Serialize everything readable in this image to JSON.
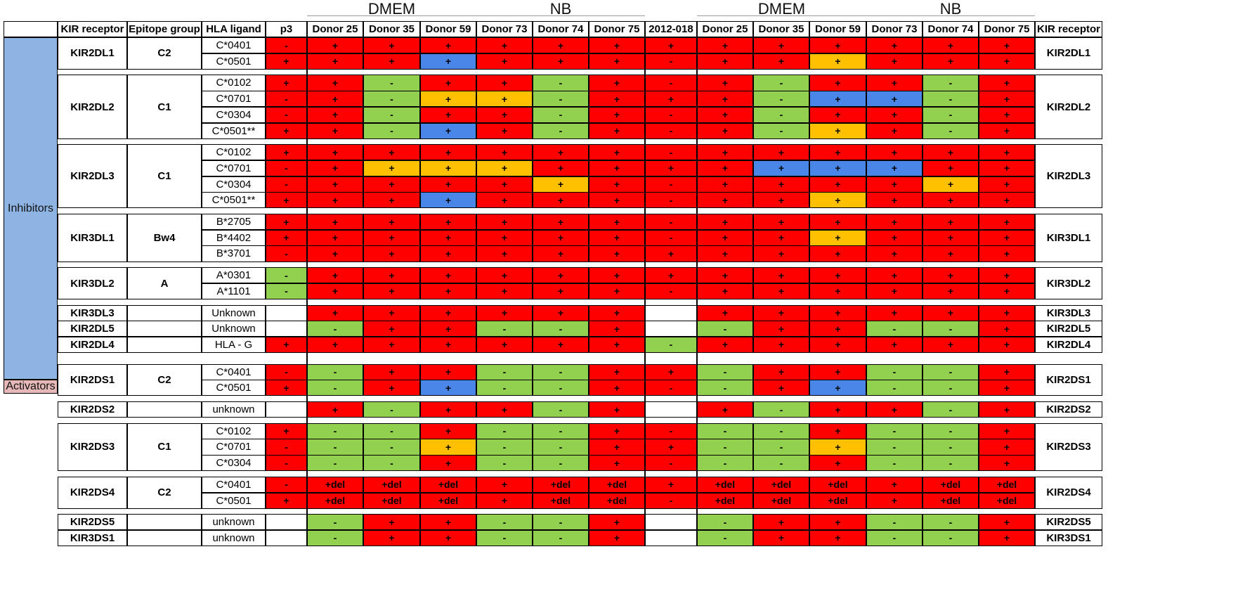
{
  "colors": {
    "plus": "#ff0000",
    "minus": "#92d050",
    "blue": "#4a86e8",
    "orange": "#ffc000",
    "empty": "#ffffff",
    "inhibitors_bg": "#8eb4e3",
    "activators_bg": "#e6b9b8"
  },
  "top_headers": [
    {
      "label": "DMEM",
      "start_col": 1,
      "end_col": 3
    },
    {
      "label": "NB",
      "start_col": 4,
      "end_col": 6
    },
    {
      "label": "DMEM",
      "start_col": 8,
      "end_col": 10
    },
    {
      "label": "NB",
      "start_col": 11,
      "end_col": 13
    }
  ],
  "headers": {
    "receptor": "KIR receptor",
    "epitope": "Epitope group",
    "ligand": "HLA ligand",
    "columns": [
      "p3",
      "Donor 25",
      "Donor 35",
      "Donor 59",
      "Donor 73",
      "Donor 74",
      "Donor 75",
      "2012-018",
      "Donor 25",
      "Donor 35",
      "Donor 59",
      "Donor 73",
      "Donor 74",
      "Donor 75"
    ],
    "receptor_right": "KIR receptor"
  },
  "groups": [
    {
      "label": "Inhibitors",
      "first_row": 0,
      "last_row": 18
    },
    {
      "label": "Activators",
      "first_row": 19,
      "last_row": 30
    }
  ],
  "blocks": [
    {
      "receptor": "KIR2DL1",
      "epitope": "C2",
      "rows": [
        {
          "ligand": "C*0401",
          "cells": [
            "-",
            "+",
            "+",
            "+",
            "+",
            "+",
            "+",
            "+",
            "+",
            "+",
            "+",
            "+",
            "+",
            "+"
          ],
          "colors": [
            "R",
            "R",
            "R",
            "R",
            "R",
            "R",
            "R",
            "R",
            "R",
            "R",
            "R",
            "R",
            "R",
            "R"
          ]
        },
        {
          "ligand": "C*0501",
          "cells": [
            "+",
            "+",
            "+",
            "+",
            "+",
            "+",
            "+",
            "-",
            "+",
            "+",
            "+",
            "+",
            "+",
            "+"
          ],
          "colors": [
            "R",
            "R",
            "R",
            "B",
            "R",
            "R",
            "R",
            "R",
            "R",
            "R",
            "O",
            "R",
            "R",
            "R"
          ]
        }
      ]
    },
    {
      "receptor": "KIR2DL2",
      "epitope": "C1",
      "rows": [
        {
          "ligand": "C*0102",
          "cells": [
            "+",
            "+",
            "-",
            "+",
            "+",
            "-",
            "+",
            "-",
            "+",
            "-",
            "+",
            "+",
            "-",
            "+"
          ],
          "colors": [
            "R",
            "R",
            "G",
            "R",
            "R",
            "G",
            "R",
            "R",
            "R",
            "G",
            "R",
            "R",
            "G",
            "R"
          ]
        },
        {
          "ligand": "C*0701",
          "cells": [
            "-",
            "+",
            "-",
            "+",
            "+",
            "-",
            "+",
            "+",
            "+",
            "-",
            "+",
            "+",
            "-",
            "+"
          ],
          "colors": [
            "R",
            "R",
            "G",
            "O",
            "O",
            "G",
            "R",
            "R",
            "R",
            "G",
            "B",
            "B",
            "G",
            "R"
          ]
        },
        {
          "ligand": "C*0304",
          "cells": [
            "-",
            "+",
            "-",
            "+",
            "+",
            "-",
            "+",
            "-",
            "+",
            "-",
            "+",
            "+",
            "-",
            "+"
          ],
          "colors": [
            "R",
            "R",
            "G",
            "R",
            "R",
            "G",
            "R",
            "R",
            "R",
            "G",
            "R",
            "R",
            "G",
            "R"
          ]
        },
        {
          "ligand": "C*0501**",
          "cells": [
            "+",
            "+",
            "-",
            "+",
            "+",
            "-",
            "+",
            "-",
            "+",
            "-",
            "+",
            "+",
            "-",
            "+"
          ],
          "colors": [
            "R",
            "R",
            "G",
            "B",
            "R",
            "G",
            "R",
            "R",
            "R",
            "G",
            "O",
            "R",
            "G",
            "R"
          ]
        }
      ]
    },
    {
      "receptor": "KIR2DL3",
      "epitope": "C1",
      "rows": [
        {
          "ligand": "C*0102",
          "cells": [
            "+",
            "+",
            "+",
            "+",
            "+",
            "+",
            "+",
            "-",
            "+",
            "+",
            "+",
            "+",
            "+",
            "+"
          ],
          "colors": [
            "R",
            "R",
            "R",
            "R",
            "R",
            "R",
            "R",
            "R",
            "R",
            "R",
            "R",
            "R",
            "R",
            "R"
          ]
        },
        {
          "ligand": "C*0701",
          "cells": [
            "-",
            "+",
            "+",
            "+",
            "+",
            "+",
            "+",
            "+",
            "+",
            "+",
            "+",
            "+",
            "+",
            "+"
          ],
          "colors": [
            "R",
            "R",
            "O",
            "O",
            "O",
            "R",
            "R",
            "R",
            "R",
            "B",
            "B",
            "B",
            "R",
            "R"
          ]
        },
        {
          "ligand": "C*0304",
          "cells": [
            "-",
            "+",
            "+",
            "+",
            "+",
            "+",
            "+",
            "-",
            "+",
            "+",
            "+",
            "+",
            "+",
            "+"
          ],
          "colors": [
            "R",
            "R",
            "R",
            "R",
            "R",
            "O",
            "R",
            "R",
            "R",
            "R",
            "R",
            "R",
            "O",
            "R"
          ]
        },
        {
          "ligand": "C*0501**",
          "cells": [
            "+",
            "+",
            "+",
            "+",
            "+",
            "+",
            "+",
            "-",
            "+",
            "+",
            "+",
            "+",
            "+",
            "+"
          ],
          "colors": [
            "R",
            "R",
            "R",
            "B",
            "R",
            "R",
            "R",
            "R",
            "R",
            "R",
            "O",
            "R",
            "R",
            "R"
          ]
        }
      ]
    },
    {
      "receptor": "KIR3DL1",
      "epitope": "Bw4",
      "rows": [
        {
          "ligand": "B*2705",
          "cells": [
            "+",
            "+",
            "+",
            "+",
            "+",
            "+",
            "+",
            "-",
            "+",
            "+",
            "+",
            "+",
            "+",
            "+"
          ],
          "colors": [
            "R",
            "R",
            "R",
            "R",
            "R",
            "R",
            "R",
            "R",
            "R",
            "R",
            "R",
            "R",
            "R",
            "R"
          ]
        },
        {
          "ligand": "B*4402",
          "cells": [
            "+",
            "+",
            "+",
            "+",
            "+",
            "+",
            "+",
            "-",
            "+",
            "+",
            "+",
            "+",
            "+",
            "+"
          ],
          "colors": [
            "R",
            "R",
            "R",
            "R",
            "R",
            "R",
            "R",
            "R",
            "R",
            "R",
            "O",
            "R",
            "R",
            "R"
          ]
        },
        {
          "ligand": "B*3701",
          "cells": [
            "-",
            "+",
            "+",
            "+",
            "+",
            "+",
            "+",
            "+",
            "+",
            "+",
            "+",
            "+",
            "+",
            "+"
          ],
          "colors": [
            "R",
            "R",
            "R",
            "R",
            "R",
            "R",
            "R",
            "R",
            "R",
            "R",
            "R",
            "R",
            "R",
            "R"
          ]
        }
      ]
    },
    {
      "receptor": "KIR3DL2",
      "epitope": "A",
      "rows": [
        {
          "ligand": "A*0301",
          "cells": [
            "-",
            "+",
            "+",
            "+",
            "+",
            "+",
            "+",
            "+",
            "+",
            "+",
            "+",
            "+",
            "+",
            "+"
          ],
          "colors": [
            "G",
            "R",
            "R",
            "R",
            "R",
            "R",
            "R",
            "R",
            "R",
            "R",
            "R",
            "R",
            "R",
            "R"
          ]
        },
        {
          "ligand": "A*1101",
          "cells": [
            "-",
            "+",
            "+",
            "+",
            "+",
            "+",
            "+",
            "-",
            "+",
            "+",
            "+",
            "+",
            "+",
            "+"
          ],
          "colors": [
            "G",
            "R",
            "R",
            "R",
            "R",
            "R",
            "R",
            "R",
            "R",
            "R",
            "R",
            "R",
            "R",
            "R"
          ]
        }
      ]
    },
    {
      "receptor": "KIR3DL3",
      "epitope": "",
      "rows": [
        {
          "ligand": "Unknown",
          "cells": [
            "",
            "+",
            "+",
            "+",
            "+",
            "+",
            "+",
            "",
            "+",
            "+",
            "+",
            "+",
            "+",
            "+"
          ],
          "colors": [
            "W",
            "R",
            "R",
            "R",
            "R",
            "R",
            "R",
            "W",
            "R",
            "R",
            "R",
            "R",
            "R",
            "R"
          ]
        }
      ],
      "nogap": true
    },
    {
      "receptor": "KIR2DL5",
      "epitope": "",
      "rows": [
        {
          "ligand": "Unknown",
          "cells": [
            "",
            "-",
            "+",
            "+",
            "-",
            "-",
            "+",
            "",
            "-",
            "+",
            "+",
            "-",
            "-",
            "+"
          ],
          "colors": [
            "W",
            "G",
            "R",
            "R",
            "G",
            "G",
            "R",
            "W",
            "G",
            "R",
            "R",
            "G",
            "G",
            "R"
          ]
        }
      ],
      "nogap": true
    },
    {
      "receptor": "KIR2DL4",
      "epitope": "",
      "rows": [
        {
          "ligand": "HLA - G",
          "cells": [
            "+",
            "+",
            "+",
            "+",
            "+",
            "+",
            "+",
            "-",
            "+",
            "+",
            "+",
            "+",
            "+",
            "+"
          ],
          "colors": [
            "R",
            "R",
            "R",
            "R",
            "R",
            "R",
            "R",
            "G",
            "R",
            "R",
            "R",
            "R",
            "R",
            "R"
          ]
        }
      ]
    },
    {
      "receptor": "KIR2DS1",
      "epitope": "C2",
      "rows": [
        {
          "ligand": "C*0401",
          "cells": [
            "-",
            "-",
            "+",
            "+",
            "-",
            "-",
            "+",
            "+",
            "-",
            "+",
            "+",
            "-",
            "-",
            "+"
          ],
          "colors": [
            "R",
            "G",
            "R",
            "R",
            "G",
            "G",
            "R",
            "R",
            "G",
            "R",
            "R",
            "G",
            "G",
            "R"
          ]
        },
        {
          "ligand": "C*0501",
          "cells": [
            "+",
            "-",
            "+",
            "+",
            "-",
            "-",
            "+",
            "-",
            "-",
            "+",
            "+",
            "-",
            "-",
            "+"
          ],
          "colors": [
            "R",
            "G",
            "R",
            "B",
            "G",
            "G",
            "R",
            "R",
            "G",
            "R",
            "B",
            "G",
            "G",
            "R"
          ]
        }
      ]
    },
    {
      "receptor": "KIR2DS2",
      "epitope": "",
      "rows": [
        {
          "ligand": "unknown",
          "cells": [
            "",
            "+",
            "-",
            "+",
            "+",
            "-",
            "+",
            "",
            "+",
            "-",
            "+",
            "+",
            "-",
            "+"
          ],
          "colors": [
            "W",
            "R",
            "G",
            "R",
            "R",
            "G",
            "R",
            "W",
            "R",
            "G",
            "R",
            "R",
            "G",
            "R"
          ]
        }
      ]
    },
    {
      "receptor": "KIR2DS3",
      "epitope": "C1",
      "rows": [
        {
          "ligand": "C*0102",
          "cells": [
            "+",
            "-",
            "-",
            "+",
            "-",
            "-",
            "+",
            "-",
            "-",
            "-",
            "+",
            "-",
            "-",
            "+"
          ],
          "colors": [
            "R",
            "G",
            "G",
            "R",
            "G",
            "G",
            "R",
            "R",
            "G",
            "G",
            "R",
            "G",
            "G",
            "R"
          ]
        },
        {
          "ligand": "C*0701",
          "cells": [
            "-",
            "-",
            "-",
            "+",
            "-",
            "-",
            "+",
            "+",
            "-",
            "-",
            "+",
            "-",
            "-",
            "+"
          ],
          "colors": [
            "R",
            "G",
            "G",
            "O",
            "G",
            "G",
            "R",
            "R",
            "G",
            "G",
            "O",
            "G",
            "G",
            "R"
          ]
        },
        {
          "ligand": "C*0304",
          "cells": [
            "-",
            "-",
            "-",
            "+",
            "-",
            "-",
            "+",
            "-",
            "-",
            "-",
            "+",
            "-",
            "-",
            "+"
          ],
          "colors": [
            "R",
            "G",
            "G",
            "R",
            "G",
            "G",
            "R",
            "R",
            "G",
            "G",
            "R",
            "G",
            "G",
            "R"
          ]
        }
      ]
    },
    {
      "receptor": "KIR2DS4",
      "epitope": "C2",
      "rows": [
        {
          "ligand": "C*0401",
          "cells": [
            "-",
            "+del",
            "+del",
            "+del",
            "+",
            "+del",
            "+del",
            "+",
            "+del",
            "+del",
            "+del",
            "+",
            "+del",
            "+del"
          ],
          "colors": [
            "R",
            "R",
            "R",
            "R",
            "R",
            "R",
            "R",
            "R",
            "R",
            "R",
            "R",
            "R",
            "R",
            "R"
          ]
        },
        {
          "ligand": "C*0501",
          "cells": [
            "+",
            "+del",
            "+del",
            "+del",
            "+",
            "+del",
            "+del",
            "-",
            "+del",
            "+del",
            "+del",
            "+",
            "+del",
            "+del"
          ],
          "colors": [
            "R",
            "R",
            "R",
            "R",
            "R",
            "R",
            "R",
            "R",
            "R",
            "R",
            "R",
            "R",
            "R",
            "R"
          ]
        }
      ]
    },
    {
      "receptor": "KIR2DS5",
      "epitope": "",
      "rows": [
        {
          "ligand": "unknown",
          "cells": [
            "",
            "-",
            "+",
            "+",
            "-",
            "-",
            "+",
            "",
            "-",
            "+",
            "+",
            "-",
            "-",
            "+"
          ],
          "colors": [
            "W",
            "G",
            "R",
            "R",
            "G",
            "G",
            "R",
            "W",
            "G",
            "R",
            "R",
            "G",
            "G",
            "R"
          ]
        }
      ],
      "nogap": true
    },
    {
      "receptor": "KIR3DS1",
      "epitope": "",
      "rows": [
        {
          "ligand": "unknown",
          "cells": [
            "",
            "-",
            "+",
            "+",
            "-",
            "-",
            "+",
            "",
            "-",
            "+",
            "+",
            "-",
            "-",
            "+"
          ],
          "colors": [
            "W",
            "G",
            "R",
            "R",
            "G",
            "G",
            "R",
            "W",
            "G",
            "R",
            "R",
            "G",
            "G",
            "R"
          ]
        }
      ]
    }
  ]
}
